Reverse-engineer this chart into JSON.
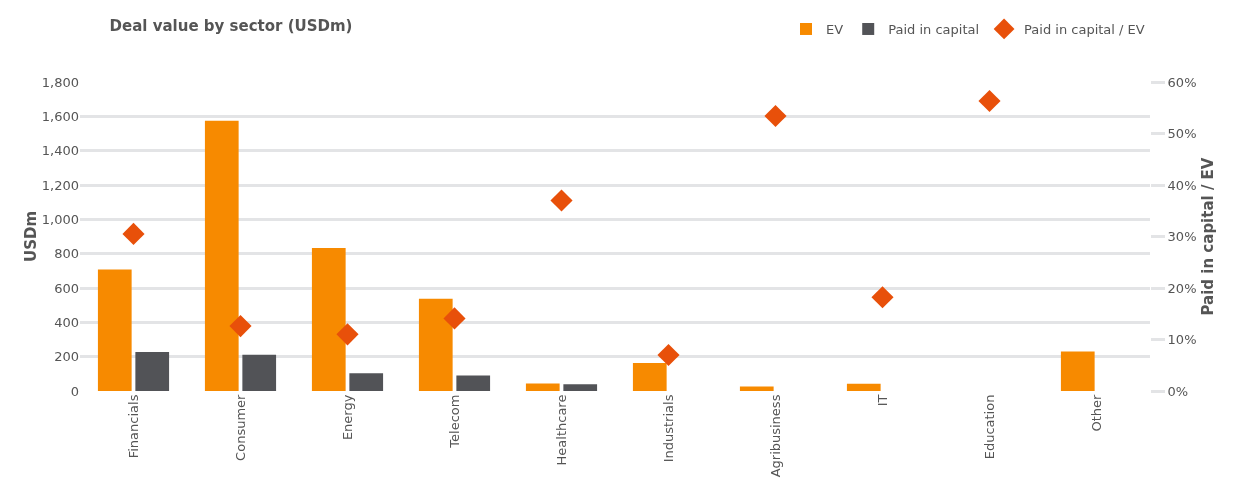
{
  "chart_data": {
    "type": "bar",
    "title": "Deal value by sector (USDm)",
    "ylabel": "USDm",
    "y2label": "Paid in capital / EV",
    "categories": [
      "Financials",
      "Consumer",
      "Energy",
      "Telecom",
      "Healthcare",
      "Industrials",
      "Agribusiness",
      "IT",
      "Education",
      "Other"
    ],
    "series": [
      {
        "name": "EV",
        "color": "#f78a00",
        "values": [
          708,
          1574,
          833,
          537,
          43,
          163,
          26,
          42,
          null,
          230
        ]
      },
      {
        "name": "Paid in capital",
        "color": "#525357",
        "values": [
          227,
          211,
          104,
          91,
          40,
          null,
          null,
          null,
          null,
          null
        ]
      },
      {
        "name": "Paid in capital / EV",
        "type": "scatter",
        "axis": "y2",
        "color": "#e8500a",
        "values": [
          30.5,
          12.6,
          11.0,
          14.1,
          37,
          7.0,
          53.4,
          18.2,
          56.3,
          null
        ]
      }
    ],
    "ylim": [
      0,
      1800
    ],
    "yticks": [
      {
        "value": 0,
        "label": "0"
      },
      {
        "value": 200,
        "label": "200"
      },
      {
        "value": 400,
        "label": "400"
      },
      {
        "value": 600,
        "label": "600"
      },
      {
        "value": 800,
        "label": "800"
      },
      {
        "value": 1000,
        "label": "1,000"
      },
      {
        "value": 1200,
        "label": "1,200"
      },
      {
        "value": 1400,
        "label": "1,400"
      },
      {
        "value": 1600,
        "label": "1,600"
      },
      {
        "value": 1800,
        "label": "1,800"
      }
    ],
    "y2lim": [
      0,
      60
    ],
    "y2ticks": [
      {
        "value": 0,
        "label": "0%"
      },
      {
        "value": 10,
        "label": "10%"
      },
      {
        "value": 20,
        "label": "20%"
      },
      {
        "value": 30,
        "label": "30%"
      },
      {
        "value": 40,
        "label": "40%"
      },
      {
        "value": 50,
        "label": "50%"
      },
      {
        "value": 60,
        "label": "60%"
      }
    ],
    "grid": "y",
    "legend": "top right",
    "marker": "diamond"
  }
}
